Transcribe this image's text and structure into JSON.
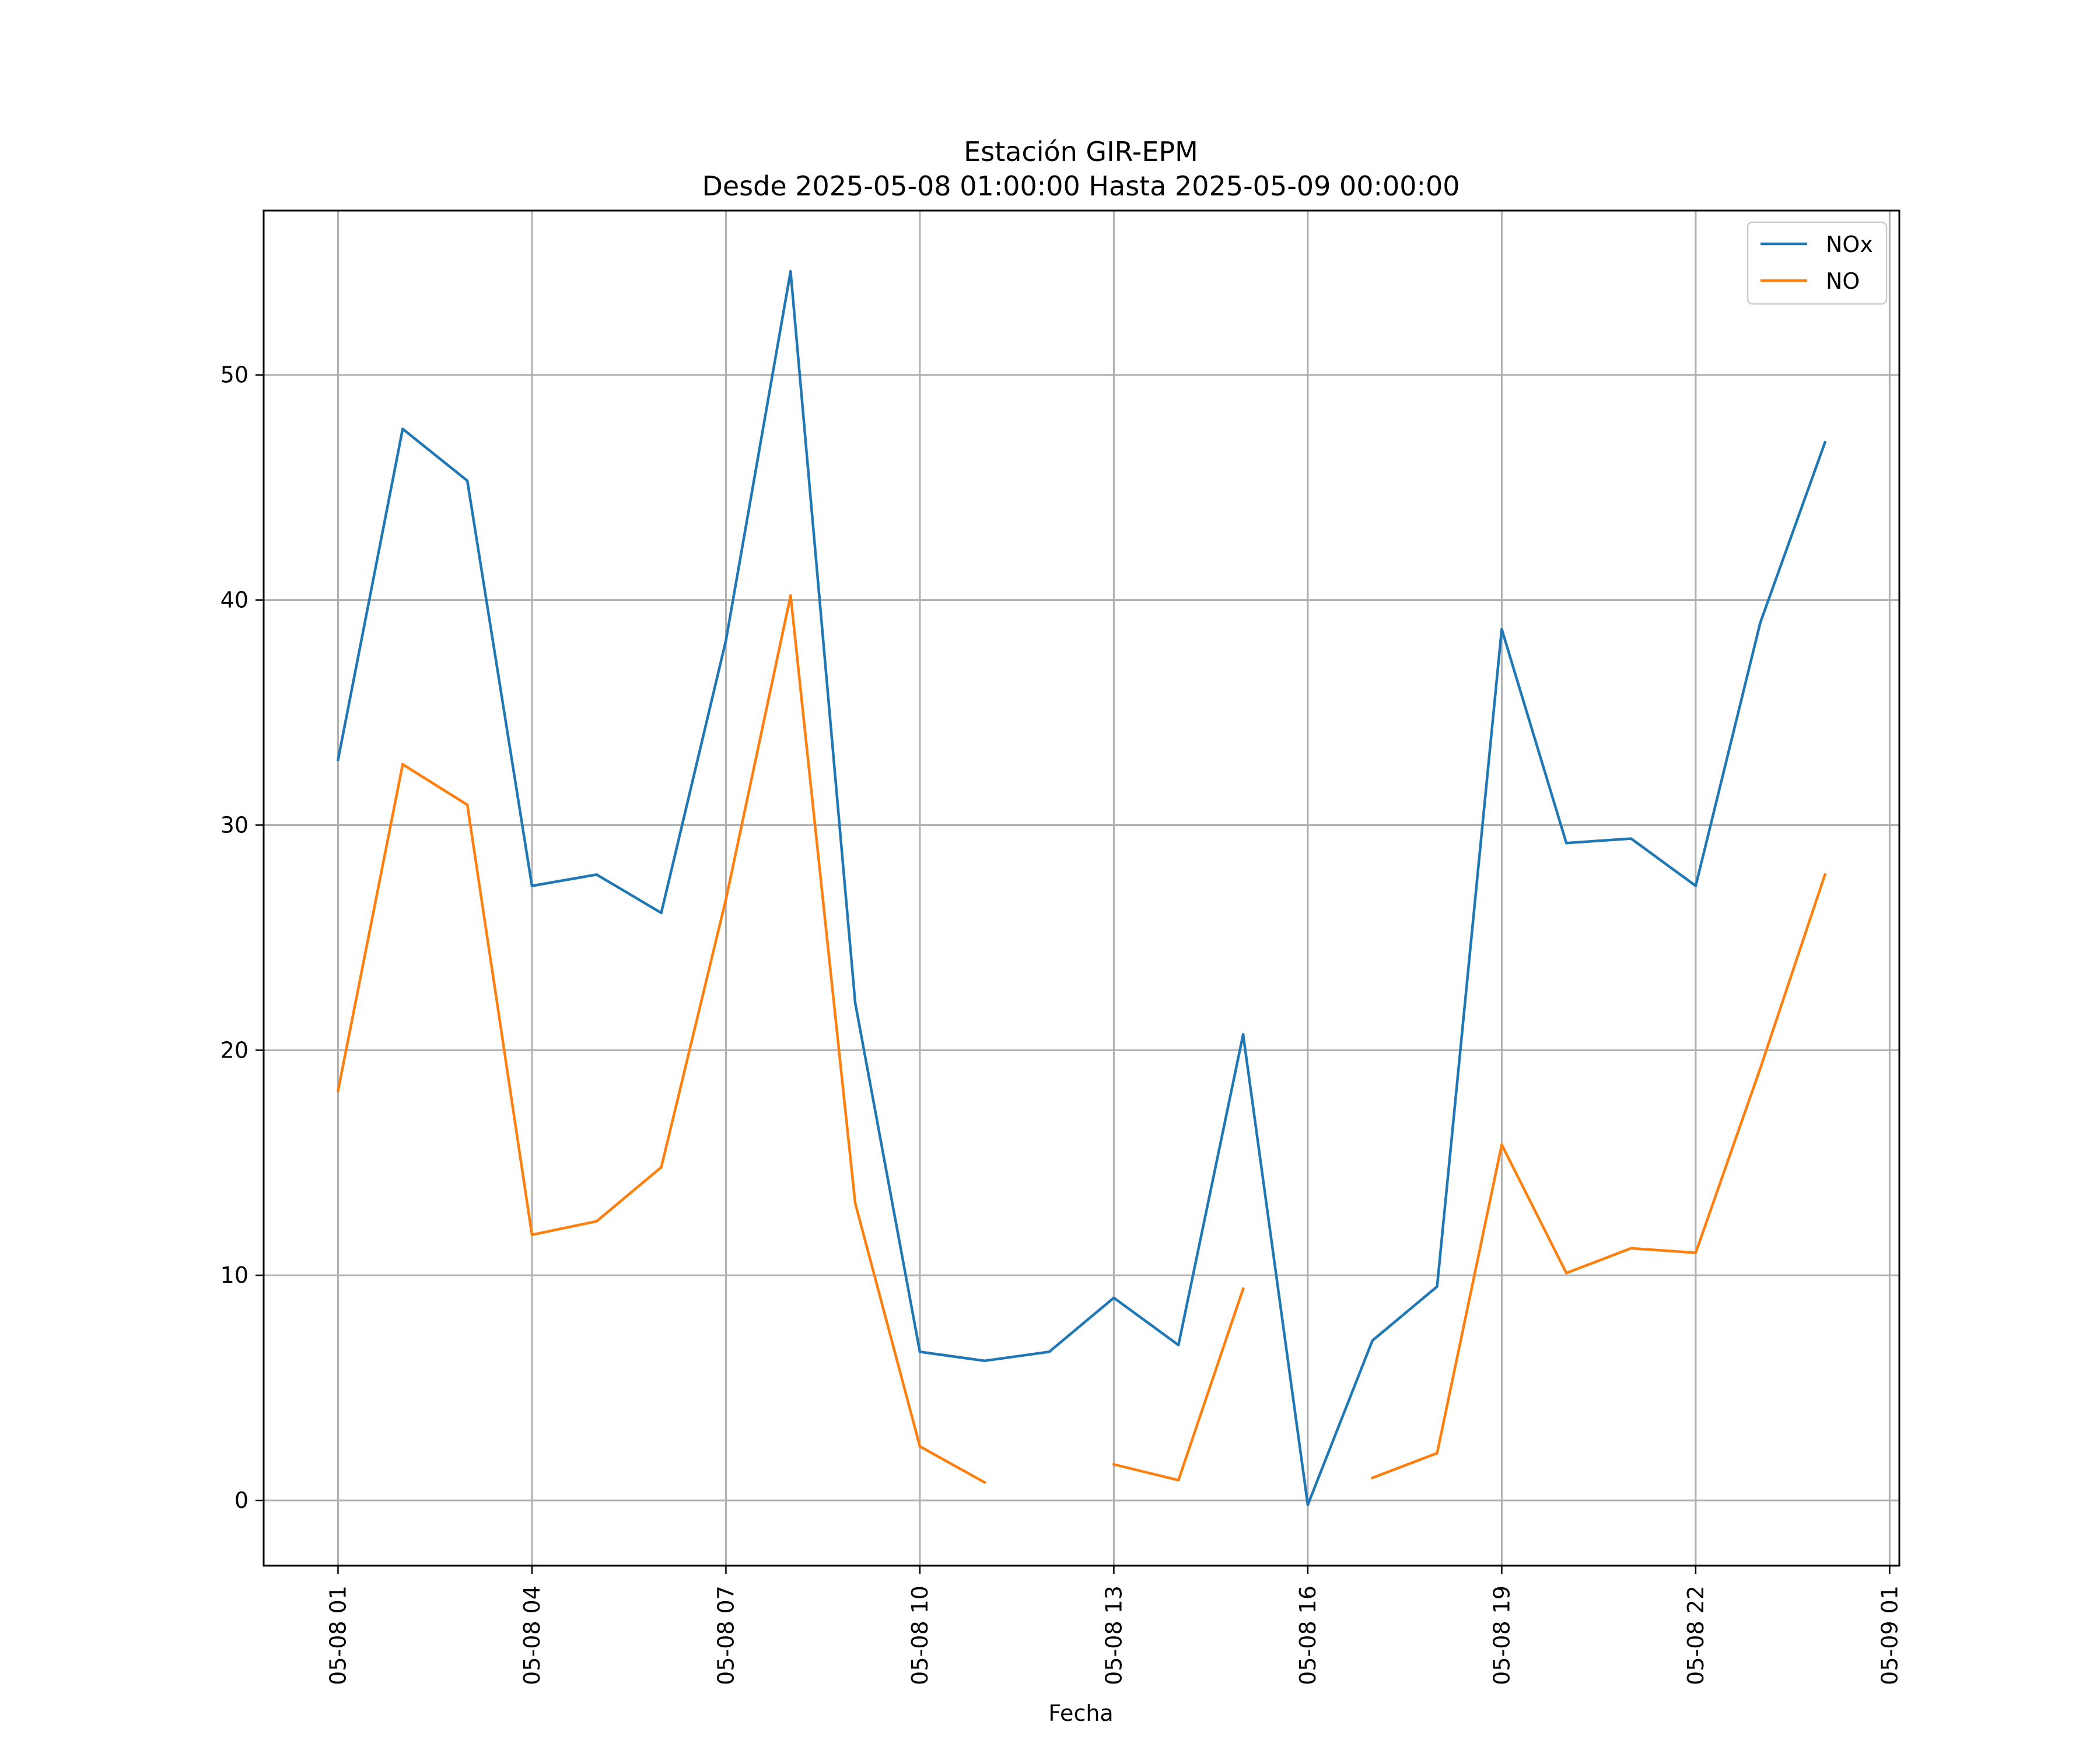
{
  "chart_data": {
    "type": "line",
    "title_line1": "Estación GIR-EPM",
    "title_line2": "Desde 2025-05-08 01:00:00 Hasta 2025-05-09 00:00:00",
    "xlabel": "Fecha",
    "ylabel": "",
    "x_range": [
      "2025-05-07 23:51",
      "2025-05-09 01:09"
    ],
    "ylim": [
      -2.9,
      57.3
    ],
    "x_ticks": [
      {
        "value": "2025-05-08 01:00",
        "label": "05-08 01"
      },
      {
        "value": "2025-05-08 04:00",
        "label": "05-08 04"
      },
      {
        "value": "2025-05-08 07:00",
        "label": "05-08 07"
      },
      {
        "value": "2025-05-08 10:00",
        "label": "05-08 10"
      },
      {
        "value": "2025-05-08 13:00",
        "label": "05-08 13"
      },
      {
        "value": "2025-05-08 16:00",
        "label": "05-08 16"
      },
      {
        "value": "2025-05-08 19:00",
        "label": "05-08 19"
      },
      {
        "value": "2025-05-08 22:00",
        "label": "05-08 22"
      },
      {
        "value": "2025-05-09 01:00",
        "label": "05-09 01"
      }
    ],
    "y_ticks": [
      {
        "value": 0,
        "label": "0"
      },
      {
        "value": 10,
        "label": "10"
      },
      {
        "value": 20,
        "label": "20"
      },
      {
        "value": 30,
        "label": "30"
      },
      {
        "value": 40,
        "label": "40"
      },
      {
        "value": 50,
        "label": "50"
      }
    ],
    "grid": true,
    "legend_position": "top-right",
    "x": [
      "2025-05-08 01:00",
      "2025-05-08 02:00",
      "2025-05-08 03:00",
      "2025-05-08 04:00",
      "2025-05-08 05:00",
      "2025-05-08 06:00",
      "2025-05-08 07:00",
      "2025-05-08 08:00",
      "2025-05-08 09:00",
      "2025-05-08 10:00",
      "2025-05-08 11:00",
      "2025-05-08 12:00",
      "2025-05-08 13:00",
      "2025-05-08 14:00",
      "2025-05-08 15:00",
      "2025-05-08 16:00",
      "2025-05-08 17:00",
      "2025-05-08 18:00",
      "2025-05-08 19:00",
      "2025-05-08 20:00",
      "2025-05-08 21:00",
      "2025-05-08 22:00",
      "2025-05-08 23:00",
      "2025-05-09 00:00"
    ],
    "series": [
      {
        "name": "NOx",
        "color": "#1f77b4",
        "values": [
          32.9,
          47.6,
          45.3,
          27.3,
          27.8,
          26.1,
          38.2,
          54.6,
          22.1,
          6.6,
          6.2,
          6.6,
          9.0,
          6.9,
          20.7,
          -0.2,
          7.1,
          9.5,
          38.7,
          29.2,
          29.4,
          27.3,
          39.0,
          47.0
        ]
      },
      {
        "name": "NO",
        "color": "#ff7f0e",
        "values": [
          18.2,
          32.7,
          30.9,
          11.8,
          12.4,
          14.8,
          26.7,
          40.2,
          13.2,
          2.4,
          0.8,
          null,
          1.6,
          0.9,
          9.4,
          null,
          1.0,
          2.1,
          15.8,
          10.1,
          11.2,
          11.0,
          19.2,
          27.8
        ]
      }
    ]
  }
}
